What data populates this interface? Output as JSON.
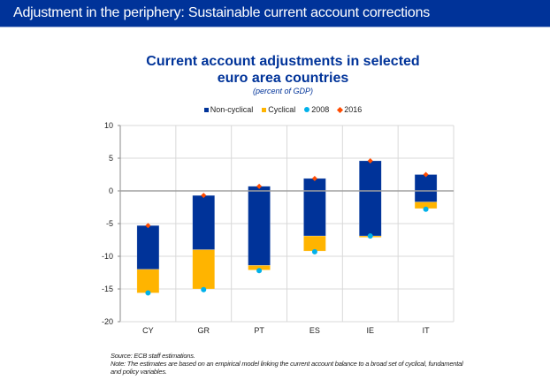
{
  "header": {
    "title": "Adjustment in the periphery: Sustainable current account corrections"
  },
  "colors": {
    "header_bg": "#003399",
    "non_cyclical": "#003399",
    "cyclical": "#ffb400",
    "y2008": "#00b1ea",
    "y2016": "#ff4b00",
    "zero_line": "#a0a0a0",
    "grid": "#d9d9d9"
  },
  "chart_data": {
    "type": "bar",
    "title": "Current account adjustments in selected euro area countries",
    "title_lines": [
      "Current account adjustments in selected",
      "euro area countries"
    ],
    "subtitle": "(percent of GDP)",
    "xlabel": "",
    "ylabel": "",
    "ylim": [
      -20,
      10
    ],
    "yticks": [
      10,
      5,
      0,
      -5,
      -10,
      -15,
      -20
    ],
    "grid": true,
    "legend_position": "top-center",
    "categories": [
      "CY",
      "GR",
      "PT",
      "ES",
      "IE",
      "IT"
    ],
    "series": [
      {
        "name": "Non-cyclical",
        "kind": "stacked-bar",
        "ranges": [
          [
            -5.3,
            -12.0
          ],
          [
            -0.7,
            -9.0
          ],
          [
            0.7,
            -11.4
          ],
          [
            1.9,
            -6.9
          ],
          [
            4.6,
            -6.9
          ],
          [
            2.5,
            -1.7
          ]
        ]
      },
      {
        "name": "Cyclical",
        "kind": "stacked-bar",
        "ranges": [
          [
            -12.0,
            -15.6
          ],
          [
            -9.0,
            -15.0
          ],
          [
            -11.4,
            -12.1
          ],
          [
            -6.9,
            -9.2
          ],
          [
            -6.9,
            -7.1
          ],
          [
            -1.7,
            -2.7
          ]
        ]
      },
      {
        "name": "2008",
        "kind": "marker-dot",
        "values": [
          -15.6,
          -15.1,
          -12.2,
          -9.3,
          -6.9,
          -2.8
        ]
      },
      {
        "name": "2016",
        "kind": "marker-diamond",
        "values": [
          -5.3,
          -0.7,
          0.7,
          1.9,
          4.6,
          2.5
        ]
      }
    ]
  },
  "legend": {
    "items": [
      {
        "label": "Non-cyclical"
      },
      {
        "label": "Cyclical"
      },
      {
        "label": "2008"
      },
      {
        "label": "2016"
      }
    ]
  },
  "footer": {
    "source": "Source: ECB staff estimations.",
    "note": "Note: The estimates are based on an empirical model linking the current account balance to a broad set of cyclical, fundamental and policy variables."
  }
}
